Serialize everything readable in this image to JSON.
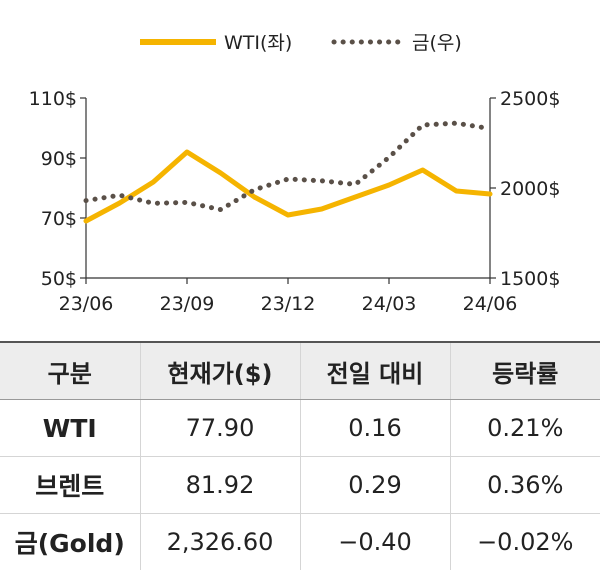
{
  "chart_data": {
    "type": "line",
    "x_tick_labels": [
      "23/06",
      "23/09",
      "23/12",
      "24/03",
      "24/06"
    ],
    "y_left": {
      "range": [
        50,
        110
      ],
      "ticks": [
        "50$",
        "70$",
        "90$",
        "110$"
      ]
    },
    "y_right": {
      "range": [
        1500,
        2500
      ],
      "ticks": [
        "1500$",
        "2000$",
        "2500$"
      ]
    },
    "legend_position": "top-center",
    "series": [
      {
        "name": "WTI(좌)",
        "axis": "left",
        "color": "#f5b400",
        "style": "solid",
        "x": [
          "23/06",
          "23/07",
          "23/08",
          "23/09",
          "23/10",
          "23/11",
          "23/12",
          "24/01",
          "24/02",
          "24/03",
          "24/04",
          "24/05",
          "24/06"
        ],
        "values": [
          69,
          75,
          82,
          92,
          85,
          77,
          71,
          73,
          77,
          81,
          86,
          79,
          78
        ]
      },
      {
        "name": "금(우)",
        "axis": "right",
        "color": "#5a5048",
        "style": "dotted",
        "x": [
          "23/06",
          "23/07",
          "23/08",
          "23/09",
          "23/10",
          "23/11",
          "23/12",
          "24/01",
          "24/02",
          "24/03",
          "24/04",
          "24/05",
          "24/06"
        ],
        "values": [
          1930,
          1960,
          1915,
          1920,
          1880,
          1990,
          2050,
          2040,
          2020,
          2170,
          2350,
          2360,
          2330
        ]
      }
    ]
  },
  "table": {
    "headers": [
      "구분",
      "현재가($)",
      "전일 대비",
      "등락률"
    ],
    "rows": [
      {
        "name": "WTI",
        "price": "77.90",
        "change": "0.16",
        "rate": "0.21%"
      },
      {
        "name": "브렌트",
        "price": "81.92",
        "change": "0.29",
        "rate": "0.36%"
      },
      {
        "name": "금(Gold)",
        "price": "2,326.60",
        "change": "−0.40",
        "rate": "−0.02%"
      }
    ]
  }
}
